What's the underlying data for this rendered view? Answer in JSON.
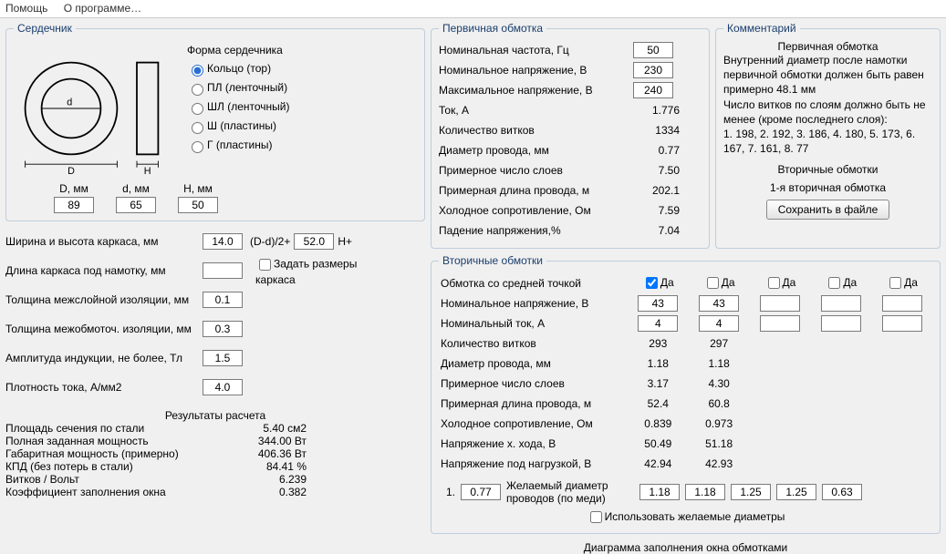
{
  "menu": {
    "help": "Помощь",
    "about": "О программе…"
  },
  "core": {
    "legend": "Сердечник",
    "shape_label": "Форма сердечника",
    "options": {
      "ring": "Кольцо (тор)",
      "pl": "ПЛ (ленточный)",
      "shl": "ШЛ (ленточный)",
      "sh": "Ш (пластины)",
      "g": "Г (пластины)"
    },
    "D_lbl": "D, мм",
    "d_lbl": "d, мм",
    "H_lbl": "H, мм",
    "D": "89",
    "d": "65",
    "H": "50"
  },
  "frame": {
    "wh_label": "Ширина и высота каркаса, мм",
    "wh": "14.0",
    "dd2_lbl": "(D-d)/2+",
    "dd2": "52.0",
    "hplus": "H+",
    "len_label": "Длина каркаса под намотку, мм",
    "len": "",
    "custom_label": "Задать размеры каркаса",
    "t1_label": "Толщина межслойной изоляции, мм",
    "t1": "0.1",
    "t2_label": "Толщина межобмоточ. изоляции, мм",
    "t2": "0.3",
    "b_label": "Амплитуда индукции, не более, Тл",
    "b": "1.5",
    "j_label": "Плотность тока, А/мм2",
    "j": "4.0"
  },
  "results": {
    "title": "Результаты расчета",
    "rows": [
      [
        "Площадь сечения по стали",
        "5.40 см2"
      ],
      [
        "Полная заданная мощность",
        "344.00 Вт"
      ],
      [
        "Габаритная мощность (примерно)",
        "406.36 Вт"
      ],
      [
        "КПД (без потерь в стали)",
        "84.41 %"
      ],
      [
        "Витков / Вольт",
        "6.239"
      ],
      [
        "Коэффициент заполнения окна",
        "0.382"
      ]
    ]
  },
  "primary": {
    "legend": "Первичная обмотка",
    "freq_l": "Номинальная частота, Гц",
    "freq": "50",
    "unom_l": "Номинальное напряжение, В",
    "unom": "230",
    "umax_l": "Максимальное напряжение, В",
    "umax": "240",
    "rows": [
      [
        "Ток, А",
        "1.776"
      ],
      [
        "Количество витков",
        "1334"
      ],
      [
        "Диаметр провода, мм",
        "0.77"
      ],
      [
        "Примерное число слоев",
        "7.50"
      ],
      [
        "Примерная длина провода, м",
        "202.1"
      ],
      [
        "Холодное сопротивление, Ом",
        "7.59"
      ],
      [
        "Падение напряжения,%",
        "7.04"
      ]
    ]
  },
  "comment": {
    "legend": "Комментарий",
    "title": "Первичная обмотка",
    "body1": "Внутренний диаметр после намотки первичной обмотки должен быть равен примерно 48.1 мм",
    "body2": "Число витков по слоям должно быть не менее (кроме последнего слоя):",
    "body3": "1. 198,  2. 192,  3. 186,  4. 180,  5. 173,  6. 167,  7. 161,  8. 77",
    "sec_title": "Вторичные обмотки",
    "sec_sub": "1-я вторичная обмотка",
    "save": "Сохранить в файле"
  },
  "secondary": {
    "legend": "Вторичные обмотки",
    "midtap": "Обмотка со средней точкой",
    "da": "Да",
    "unom_l": "Номинальное напряжение, В",
    "inom_l": "Номинальный ток, А",
    "u": [
      "43",
      "43",
      "",
      "",
      ""
    ],
    "i": [
      "4",
      "4",
      "",
      "",
      ""
    ],
    "rows": [
      [
        "Количество витков",
        "293",
        "297"
      ],
      [
        "Диаметр провода, мм",
        "1.18",
        "1.18"
      ],
      [
        "Примерное число слоев",
        "3.17",
        "4.30"
      ],
      [
        "Примерная длина провода, м",
        "52.4",
        "60.8"
      ],
      [
        "Холодное сопротивление, Ом",
        "0.839",
        "0.973"
      ],
      [
        "Напряжение х. хода, В",
        "50.49",
        "51.18"
      ],
      [
        "Напряжение под нагрузкой, В",
        "42.94",
        "42.93"
      ]
    ],
    "wish_num": "1.",
    "wish_cur": "0.77",
    "wish_lbl": "Желаемый диаметр проводов  (по меди)",
    "wish": [
      "1.18",
      "1.18",
      "1.25",
      "1.25",
      "0.63"
    ],
    "use_wish": "Использовать желаемые диаметры"
  },
  "footer": "Диаграмма заполнения окна обмотками"
}
